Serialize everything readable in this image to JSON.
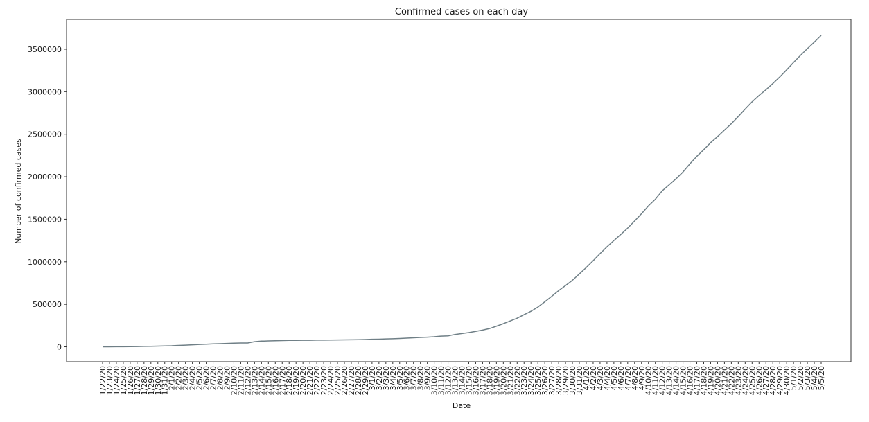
{
  "chart_data": {
    "type": "line",
    "title": "Confirmed cases on each day",
    "xlabel": "Date",
    "ylabel": "Number of confirmed cases",
    "line_color": "#6f7f86",
    "grid": false,
    "legend": "none",
    "ylim": [
      -175000,
      3850000
    ],
    "yticks": [
      0,
      500000,
      1000000,
      1500000,
      2000000,
      2500000,
      3000000,
      3500000
    ],
    "ytick_labels": [
      "0",
      "500000",
      "1000000",
      "1500000",
      "2000000",
      "2500000",
      "3000000",
      "3500000"
    ],
    "x": [
      "1/22/20",
      "1/23/20",
      "1/24/20",
      "1/25/20",
      "1/26/20",
      "1/27/20",
      "1/28/20",
      "1/29/20",
      "1/30/20",
      "1/31/20",
      "2/1/20",
      "2/2/20",
      "2/3/20",
      "2/4/20",
      "2/5/20",
      "2/6/20",
      "2/7/20",
      "2/8/20",
      "2/9/20",
      "2/10/20",
      "2/11/20",
      "2/12/20",
      "2/13/20",
      "2/14/20",
      "2/15/20",
      "2/16/20",
      "2/17/20",
      "2/18/20",
      "2/19/20",
      "2/20/20",
      "2/21/20",
      "2/22/20",
      "2/23/20",
      "2/24/20",
      "2/25/20",
      "2/26/20",
      "2/27/20",
      "2/28/20",
      "2/29/20",
      "3/1/20",
      "3/2/20",
      "3/3/20",
      "3/4/20",
      "3/5/20",
      "3/6/20",
      "3/7/20",
      "3/8/20",
      "3/9/20",
      "3/10/20",
      "3/11/20",
      "3/12/20",
      "3/13/20",
      "3/14/20",
      "3/15/20",
      "3/16/20",
      "3/17/20",
      "3/18/20",
      "3/19/20",
      "3/20/20",
      "3/21/20",
      "3/22/20",
      "3/23/20",
      "3/24/20",
      "3/25/20",
      "3/26/20",
      "3/27/20",
      "3/28/20",
      "3/29/20",
      "3/30/20",
      "3/31/20",
      "4/1/20",
      "4/2/20",
      "4/3/20",
      "4/4/20",
      "4/5/20",
      "4/6/20",
      "4/7/20",
      "4/8/20",
      "4/9/20",
      "4/10/20",
      "4/11/20",
      "4/12/20",
      "4/13/20",
      "4/14/20",
      "4/15/20",
      "4/16/20",
      "4/17/20",
      "4/18/20",
      "4/19/20",
      "4/20/20",
      "4/21/20",
      "4/22/20",
      "4/23/20",
      "4/24/20",
      "4/25/20",
      "4/26/20",
      "4/27/20",
      "4/28/20",
      "4/29/20",
      "4/30/20",
      "5/1/20",
      "5/2/20",
      "5/3/20",
      "5/4/20",
      "5/5/20"
    ],
    "series": [
      {
        "values": [
          555,
          650,
          940,
          1430,
          2120,
          2930,
          5580,
          6170,
          8240,
          9930,
          12040,
          16790,
          19880,
          23900,
          27640,
          30820,
          34400,
          37130,
          40160,
          42770,
          44810,
          45230,
          60390,
          66890,
          69060,
          71250,
          73290,
          75150,
          75650,
          76210,
          76840,
          78600,
          78990,
          79570,
          80420,
          81400,
          82760,
          84130,
          86000,
          88370,
          90300,
          92840,
          95120,
          97890,
          101800,
          105850,
          109820,
          113590,
          118620,
          125880,
          128350,
          145200,
          156100,
          167450,
          181550,
          197100,
          214900,
          242700,
          272200,
          304500,
          336900,
          378200,
          418000,
          467600,
          529600,
          593300,
          660700,
          720100,
          782400,
          857600,
          932600,
          1013300,
          1095900,
          1176000,
          1249800,
          1321500,
          1396500,
          1479800,
          1565300,
          1657500,
          1735600,
          1835100,
          1904800,
          1976200,
          2056100,
          2152400,
          2240200,
          2317800,
          2401300,
          2472300,
          2549100,
          2624100,
          2708900,
          2795700,
          2881100,
          2955000,
          3022300,
          3095900,
          3172900,
          3256600,
          3343700,
          3427400,
          3506700,
          3583000,
          3662700
        ]
      }
    ]
  }
}
